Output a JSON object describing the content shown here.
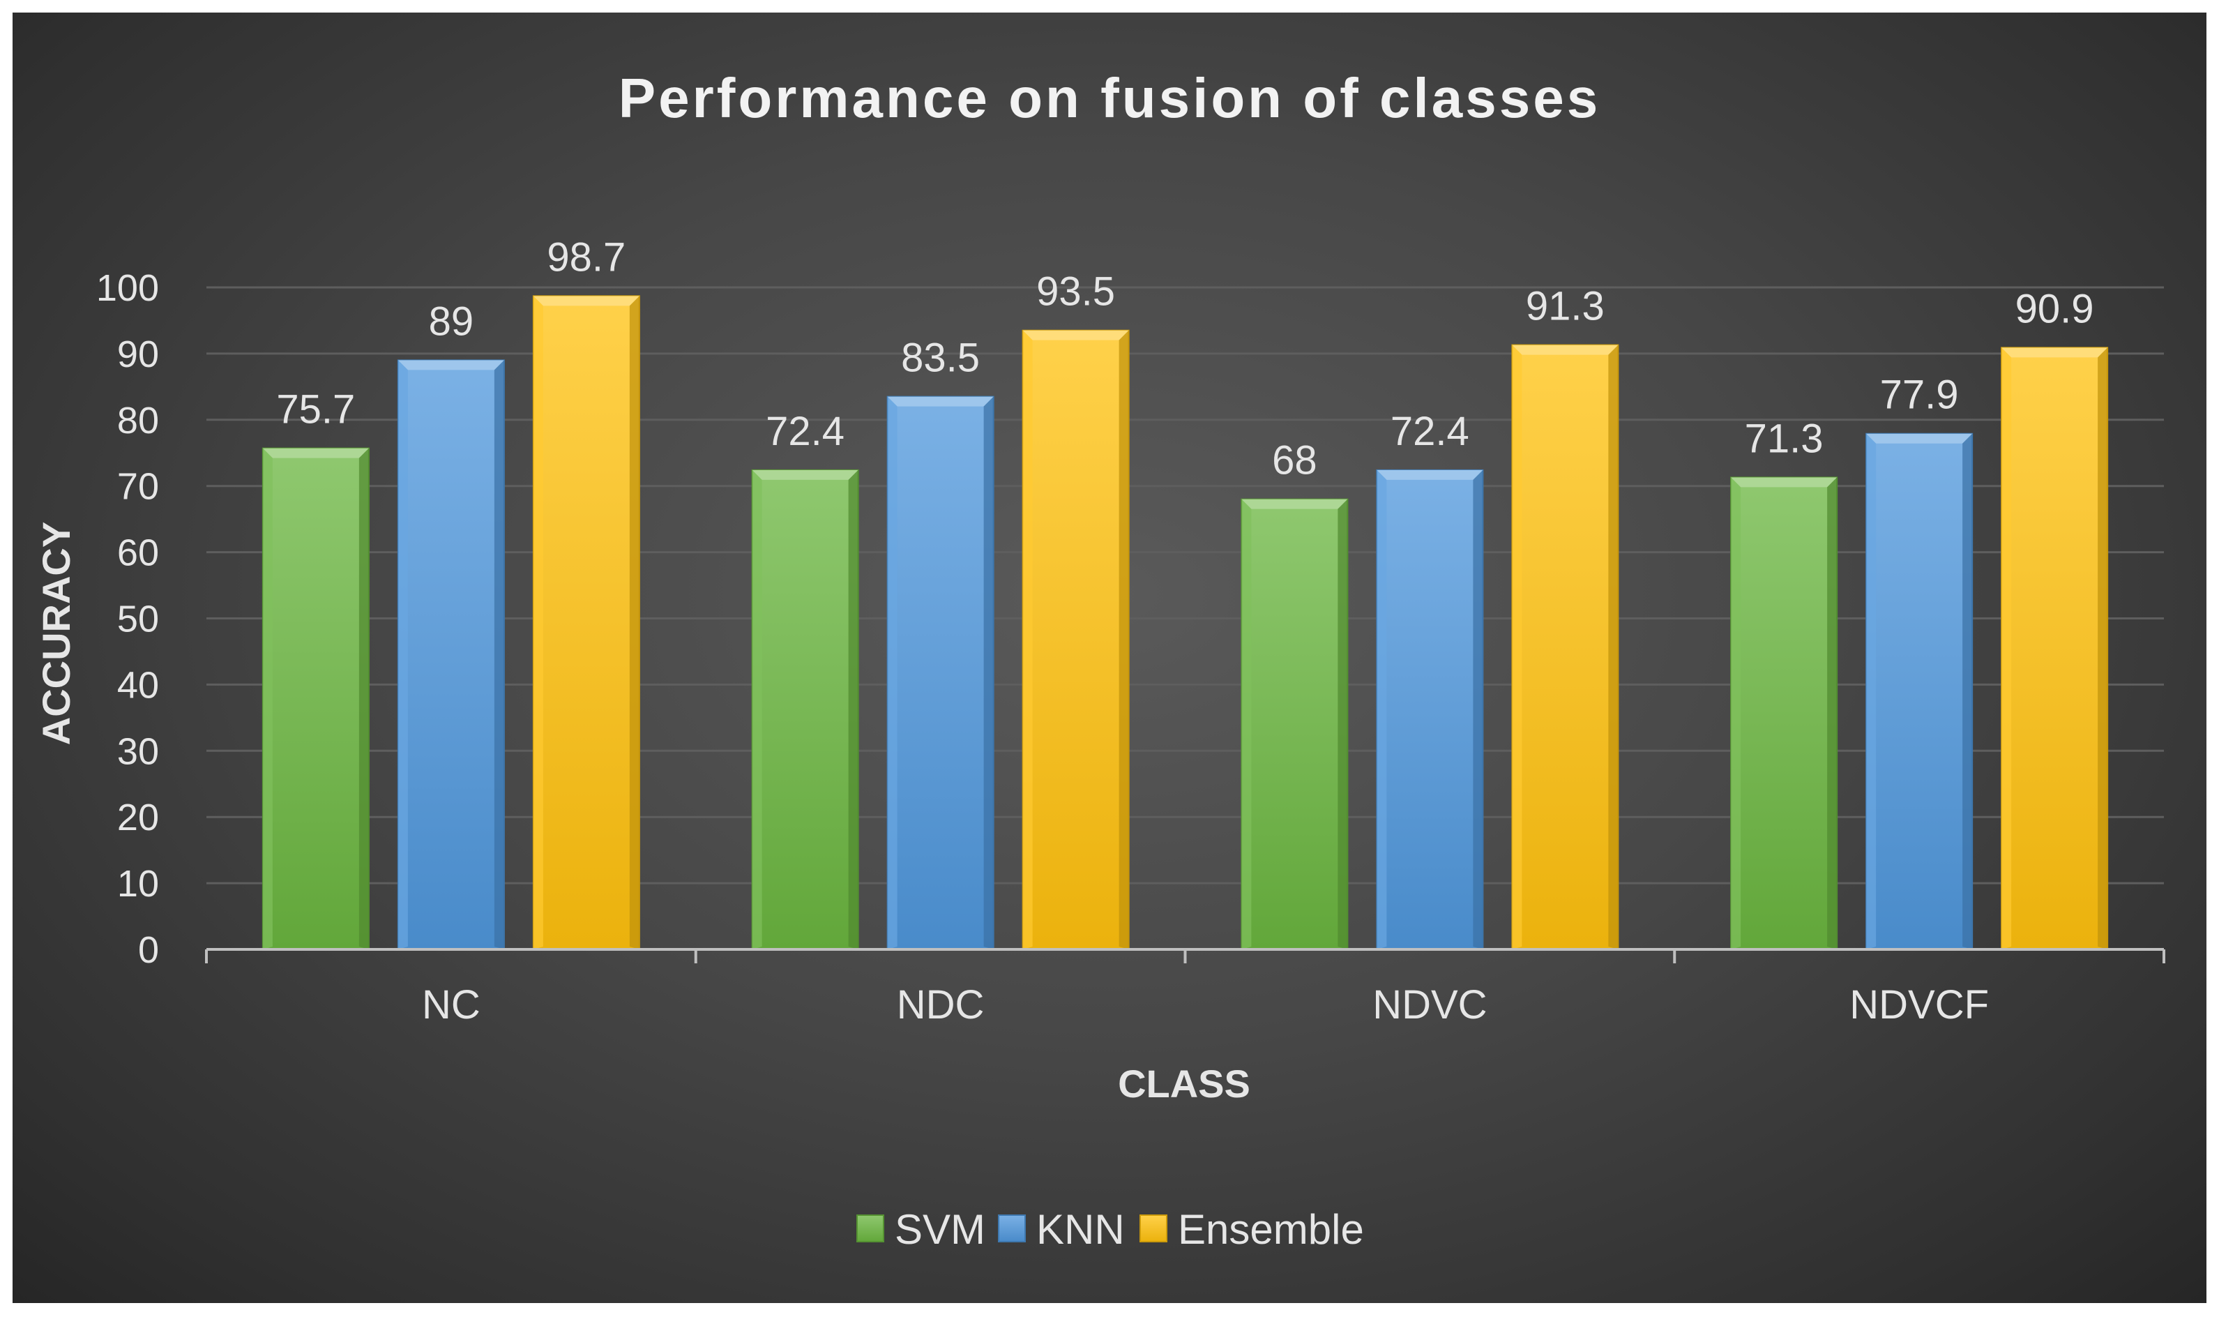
{
  "chart_data": {
    "type": "bar",
    "title": "Performance on fusion of classes",
    "xlabel": "CLASS",
    "ylabel": "ACCURACY",
    "categories": [
      "NC",
      "NDC",
      "NDVC",
      "NDVCF"
    ],
    "series": [
      {
        "name": "SVM",
        "values": [
          75.7,
          72.4,
          68,
          71.3
        ],
        "color": "#6ab63f"
      },
      {
        "name": "KNN",
        "values": [
          89,
          83.5,
          72.4,
          77.9
        ],
        "color": "#4f97dc"
      },
      {
        "name": "Ensemble",
        "values": [
          98.7,
          93.5,
          91.3,
          90.9
        ],
        "color": "#ffc20e"
      }
    ],
    "ylim": [
      0,
      100
    ],
    "yticks": [
      0,
      10,
      20,
      30,
      40,
      50,
      60,
      70,
      80,
      90,
      100
    ],
    "grid": true,
    "legend": "bottom-center",
    "background": "#3a3a3a"
  }
}
